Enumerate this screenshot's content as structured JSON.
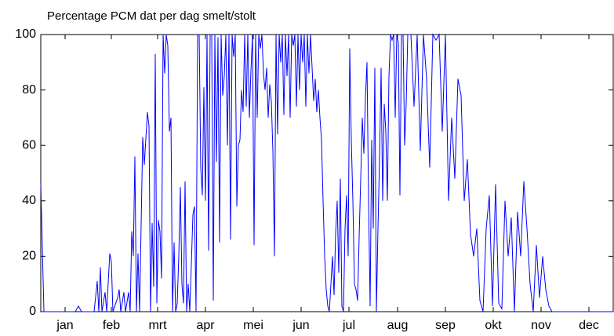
{
  "chart_data": {
    "type": "line",
    "title": "Percentage PCM dat per dag smelt/stolt",
    "xlim": [
      0,
      365
    ],
    "ylim": [
      0,
      100
    ],
    "yticks": [
      0,
      20,
      40,
      60,
      80,
      100
    ],
    "xticks": [
      {
        "value": 15.5,
        "label": "jan"
      },
      {
        "value": 45,
        "label": "feb"
      },
      {
        "value": 74.5,
        "label": "mrt"
      },
      {
        "value": 105,
        "label": "apr"
      },
      {
        "value": 135.5,
        "label": "mei"
      },
      {
        "value": 166,
        "label": "jun"
      },
      {
        "value": 196.5,
        "label": "jul"
      },
      {
        "value": 227.5,
        "label": "aug"
      },
      {
        "value": 258,
        "label": "sep"
      },
      {
        "value": 288.5,
        "label": "okt"
      },
      {
        "value": 319,
        "label": "nov"
      },
      {
        "value": 349.5,
        "label": "dec"
      }
    ],
    "color": "#0000ff",
    "x": [
      0,
      2,
      22,
      24,
      26,
      34,
      36,
      37,
      38,
      39,
      41,
      42,
      44,
      45,
      46,
      49,
      50,
      51,
      53,
      54,
      56,
      57,
      58,
      59,
      60,
      61,
      62,
      63,
      65,
      66,
      68,
      69,
      70,
      71,
      72,
      73,
      74,
      75,
      76,
      77,
      78,
      79,
      80,
      81,
      82,
      83,
      84,
      85,
      86,
      87,
      88,
      89,
      90,
      91,
      92,
      93,
      94,
      95,
      96,
      97,
      98,
      99,
      100,
      101,
      102,
      103,
      104,
      105,
      106,
      107,
      108,
      109,
      110,
      111,
      112,
      113,
      114,
      115,
      116,
      117,
      118,
      119,
      120,
      121,
      122,
      123,
      124,
      125,
      126,
      127,
      128,
      129,
      130,
      131,
      132,
      133,
      134,
      135,
      136,
      137,
      138,
      139,
      140,
      141,
      142,
      143,
      144,
      145,
      146,
      147,
      148,
      149,
      150,
      151,
      152,
      153,
      154,
      155,
      156,
      157,
      158,
      159,
      160,
      161,
      162,
      163,
      164,
      165,
      166,
      167,
      168,
      169,
      170,
      171,
      172,
      173,
      174,
      175,
      176,
      177,
      178,
      179,
      180,
      181,
      182,
      183,
      184,
      185,
      186,
      187,
      188,
      189,
      190,
      191,
      192,
      193,
      194,
      195,
      196,
      197,
      198,
      199,
      200,
      201,
      202,
      203,
      204,
      205,
      206,
      207,
      208,
      209,
      210,
      211,
      212,
      213,
      214,
      215,
      216,
      217,
      218,
      219,
      220,
      221,
      222,
      223,
      224,
      225,
      226,
      227,
      228,
      229,
      230,
      231,
      232,
      233,
      234,
      235,
      236,
      238,
      240,
      242,
      244,
      246,
      248,
      250,
      252,
      254,
      256,
      258,
      260,
      262,
      264,
      266,
      268,
      270,
      272,
      274,
      276,
      278,
      280,
      282,
      284,
      286,
      288,
      290,
      292,
      294,
      296,
      298,
      300,
      302,
      304,
      306,
      308,
      310,
      312,
      314,
      316,
      318,
      320,
      322,
      324,
      326,
      365
    ],
    "values": [
      46,
      0,
      0,
      2,
      0,
      0,
      11,
      0,
      16,
      0,
      7,
      0,
      21,
      18,
      0,
      5,
      8,
      0,
      7,
      0,
      7,
      0,
      29,
      20,
      56,
      0,
      21,
      0,
      63,
      53,
      72,
      67,
      0,
      32,
      9,
      93,
      3,
      33,
      29,
      12,
      100,
      86,
      100,
      96,
      65,
      70,
      0,
      25,
      0,
      3,
      20,
      45,
      10,
      3,
      47,
      0,
      10,
      0,
      17,
      35,
      38,
      0,
      100,
      100,
      52,
      42,
      81,
      40,
      100,
      22,
      100,
      100,
      4,
      100,
      54,
      99,
      25,
      100,
      78,
      85,
      100,
      60,
      100,
      26,
      100,
      92,
      100,
      38,
      60,
      62,
      80,
      72,
      100,
      74,
      100,
      70,
      87,
      100,
      24,
      100,
      70,
      100,
      95,
      100,
      86,
      80,
      88,
      70,
      82,
      76,
      58,
      20,
      100,
      64,
      100,
      90,
      100,
      71,
      100,
      85,
      100,
      70,
      100,
      96,
      100,
      74,
      100,
      80,
      100,
      90,
      100,
      74,
      100,
      86,
      100,
      88,
      76,
      84,
      72,
      80,
      70,
      62,
      40,
      20,
      8,
      2,
      0,
      10,
      20,
      6,
      28,
      40,
      14,
      48,
      2,
      0,
      30,
      42,
      20,
      95,
      62,
      40,
      10,
      8,
      4,
      27,
      48,
      70,
      57,
      77,
      90,
      40,
      2,
      62,
      30,
      88,
      0,
      30,
      55,
      88,
      40,
      75,
      65,
      40,
      85,
      100,
      98,
      100,
      70,
      100,
      97,
      42,
      100,
      100,
      60,
      75,
      100,
      100,
      100,
      74,
      100,
      58,
      100,
      84,
      52,
      100,
      98,
      100,
      65,
      100,
      40,
      70,
      48,
      84,
      78,
      40,
      55,
      28,
      20,
      30,
      4,
      0,
      30,
      42,
      2,
      46,
      3,
      1,
      40,
      20,
      34,
      0,
      36,
      20,
      47,
      30,
      10,
      0,
      24,
      5,
      20,
      8,
      2,
      0,
      0
    ]
  }
}
